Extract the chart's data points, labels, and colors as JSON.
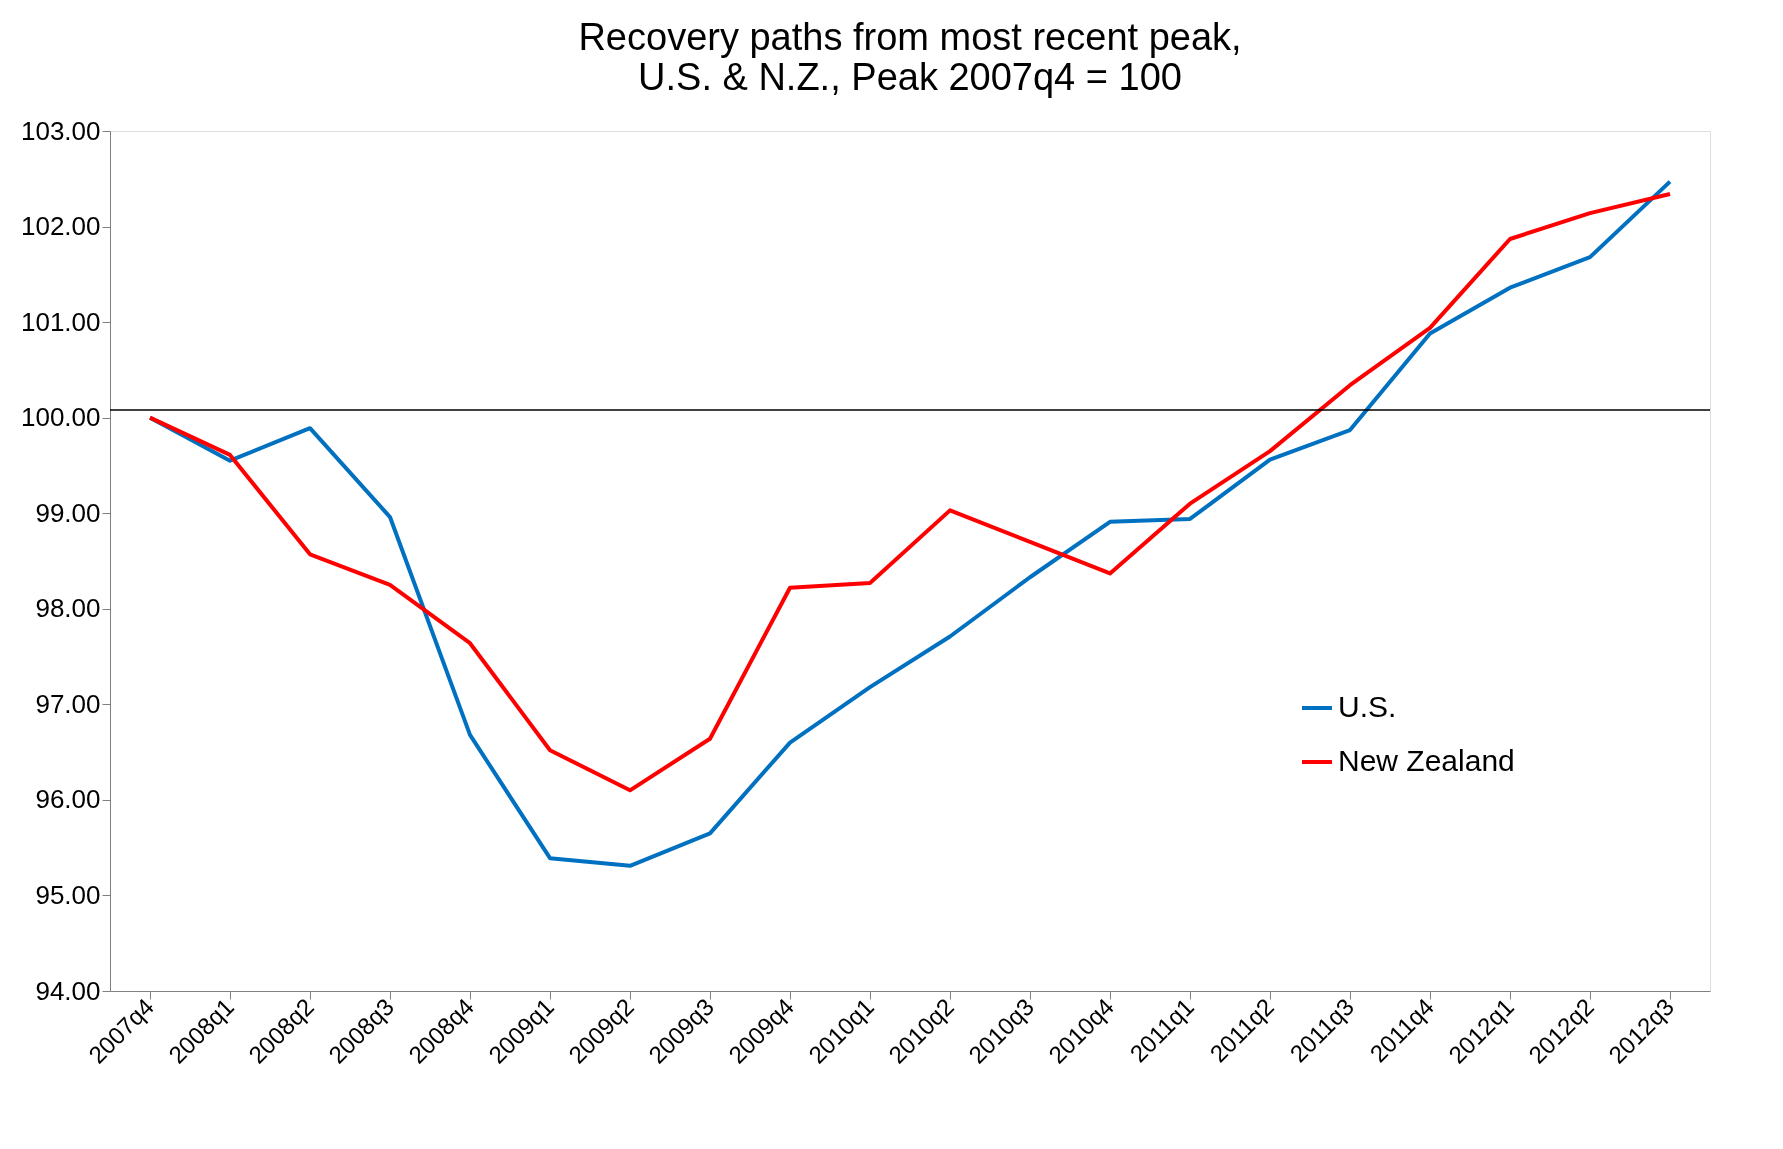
{
  "chart_data": {
    "type": "line",
    "title": [
      "Recovery paths from most recent peak,",
      "U.S. & N.Z., Peak 2007q4 = 100"
    ],
    "categories": [
      "2007q4",
      "2008q1",
      "2008q2",
      "2008q3",
      "2008q4",
      "2009q1",
      "2009q2",
      "2009q3",
      "2009q4",
      "2010q1",
      "2010q2",
      "2010q3",
      "2010q4",
      "2011q1",
      "2011q2",
      "2011q3",
      "2011q4",
      "2012q1",
      "2012q2",
      "2012q3"
    ],
    "series": [
      {
        "name": "U.S.",
        "color": "#0070c0",
        "values": [
          100.0,
          99.55,
          99.89,
          98.96,
          96.68,
          95.39,
          95.31,
          95.65,
          96.6,
          97.18,
          97.71,
          98.33,
          98.91,
          98.94,
          99.56,
          99.87,
          100.88,
          101.36,
          101.68,
          102.47
        ]
      },
      {
        "name": "New Zealand",
        "color": "#ff0000",
        "values": [
          100.0,
          99.61,
          98.57,
          98.25,
          97.64,
          96.52,
          96.1,
          96.64,
          98.22,
          98.27,
          99.03,
          98.7,
          98.37,
          99.1,
          99.65,
          100.34,
          100.94,
          101.87,
          102.14,
          102.34
        ]
      }
    ],
    "ylim": [
      94,
      103
    ],
    "yticks": [
      {
        "value": 94,
        "label": "94.00"
      },
      {
        "value": 95,
        "label": "95.00"
      },
      {
        "value": 96,
        "label": "96.00"
      },
      {
        "value": 97,
        "label": "97.00"
      },
      {
        "value": 98,
        "label": "98.00"
      },
      {
        "value": 99,
        "label": "99.00"
      },
      {
        "value": 100,
        "label": "100.00"
      },
      {
        "value": 101,
        "label": "101.00"
      },
      {
        "value": 102,
        "label": "102.00"
      },
      {
        "value": 103,
        "label": "103.00"
      }
    ],
    "ref_lines": [
      {
        "axis": "y",
        "value": 100.08,
        "color": "#000000"
      }
    ],
    "grid": false,
    "legend": "right",
    "marker": "none",
    "line_style": "solid"
  }
}
